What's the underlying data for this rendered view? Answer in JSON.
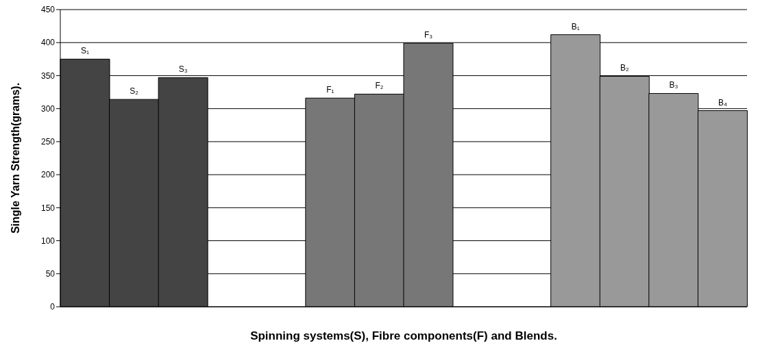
{
  "chart_data": {
    "type": "bar",
    "xlabel": "Spinning systems(S), Fibre components(F) and Blends.",
    "ylabel": "Single Yarn Strength(grams).",
    "categories": [
      "S₁",
      "S₂",
      "S₃",
      null,
      null,
      "F₁",
      "F₂",
      "F₃",
      null,
      null,
      "B₁",
      "B₂",
      "B₃",
      "B₄"
    ],
    "values": [
      375,
      314,
      347,
      null,
      null,
      316,
      322,
      399,
      null,
      null,
      412,
      349,
      323,
      297
    ],
    "colors": [
      "#444444",
      "#444444",
      "#444444",
      "#ffffff",
      "#ffffff",
      "#777777",
      "#777777",
      "#777777",
      "#ffffff",
      "#ffffff",
      "#999999",
      "#999999",
      "#999999",
      "#999999"
    ],
    "ylim": [
      0,
      450
    ],
    "yticks": [
      0,
      50,
      100,
      150,
      200,
      250,
      300,
      350,
      400,
      450
    ],
    "grid": "y",
    "tick_labels": "y"
  }
}
